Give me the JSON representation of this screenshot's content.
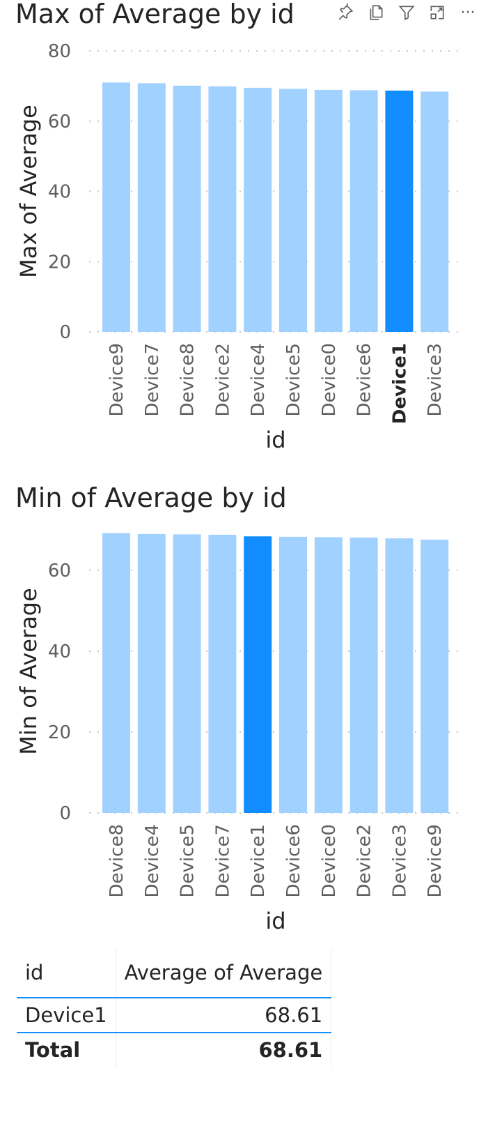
{
  "colors": {
    "bar": "#a0d1ff",
    "bar_selected": "#118dff",
    "grid": "#c8c6c4"
  },
  "toolbar": {
    "icons": [
      "pin-icon",
      "copy-icon",
      "filter-icon",
      "focus-mode-icon",
      "more-options-icon"
    ],
    "more_label": "···"
  },
  "chart_data": [
    {
      "type": "bar",
      "title": "Max of Average by id",
      "xlabel": "id",
      "ylabel": "Max of Average",
      "ylim": [
        0,
        80
      ],
      "yticks": [
        0,
        20,
        40,
        60,
        80
      ],
      "grid": true,
      "categories": [
        "Device9",
        "Device7",
        "Device8",
        "Device2",
        "Device4",
        "Device5",
        "Device0",
        "Device6",
        "Device1",
        "Device3"
      ],
      "values": [
        71.0,
        70.8,
        70.1,
        69.9,
        69.5,
        69.2,
        68.9,
        68.8,
        68.7,
        68.4
      ],
      "selected": "Device1"
    },
    {
      "type": "bar",
      "title": "Min of Average by id",
      "xlabel": "id",
      "ylabel": "Min of Average",
      "ylim": [
        0,
        70
      ],
      "yticks": [
        0,
        20,
        40,
        60
      ],
      "grid": true,
      "categories": [
        "Device8",
        "Device4",
        "Device5",
        "Device7",
        "Device1",
        "Device6",
        "Device0",
        "Device2",
        "Device3",
        "Device9"
      ],
      "values": [
        69.2,
        69.0,
        68.9,
        68.8,
        68.4,
        68.3,
        68.2,
        68.1,
        67.9,
        67.6
      ],
      "selected": "Device1"
    }
  ],
  "table": {
    "headers": [
      "id",
      "Average of Average"
    ],
    "rows": [
      [
        "Device1",
        "68.61"
      ]
    ],
    "total": [
      "Total",
      "68.61"
    ]
  }
}
